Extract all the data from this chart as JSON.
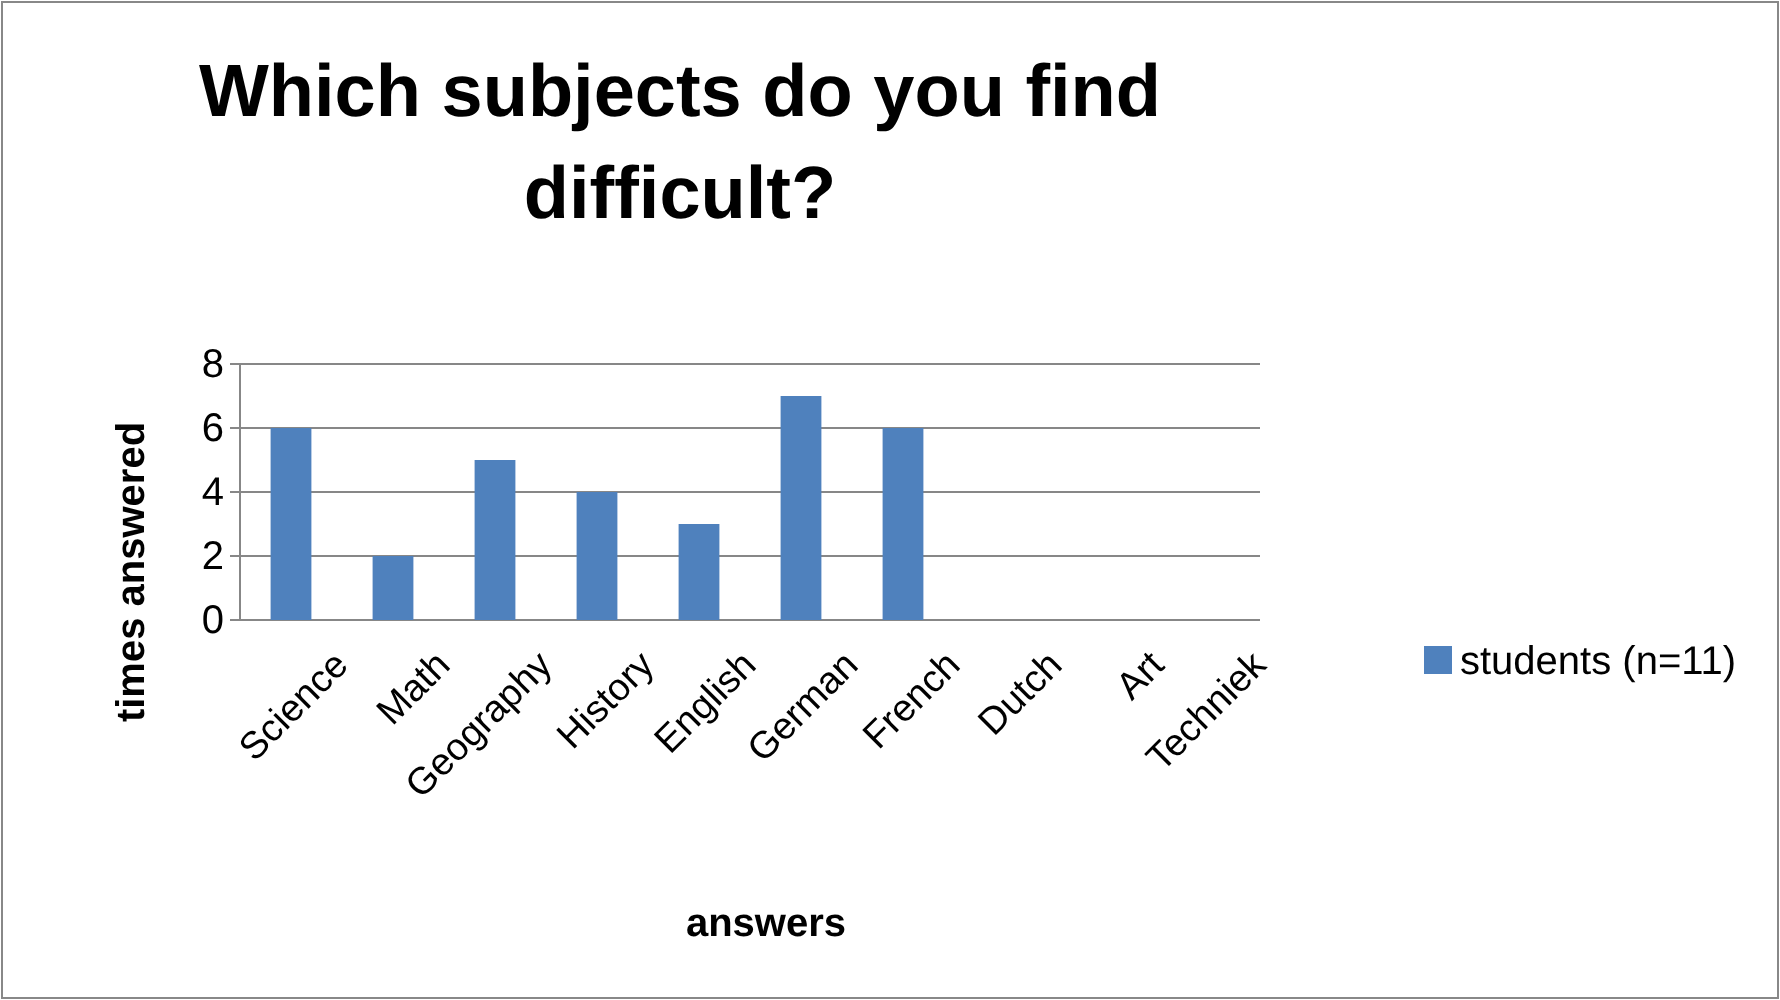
{
  "chart_data": {
    "type": "bar",
    "title": "Which subjects do you find difficult?",
    "xlabel": "answers",
    "ylabel": "times answered",
    "categories": [
      "Science",
      "Math",
      "Geography",
      "History",
      "English",
      "German",
      "French",
      "Dutch",
      "Art",
      "Techniek"
    ],
    "series": [
      {
        "name": "students (n=11)",
        "color": "#4f81bd",
        "values": [
          6,
          2,
          5,
          4,
          3,
          7,
          6,
          0,
          0,
          0
        ]
      }
    ],
    "ylim": [
      0,
      8
    ],
    "yticks": [
      0,
      2,
      4,
      6,
      8
    ],
    "grid": "y",
    "legend": "right"
  }
}
